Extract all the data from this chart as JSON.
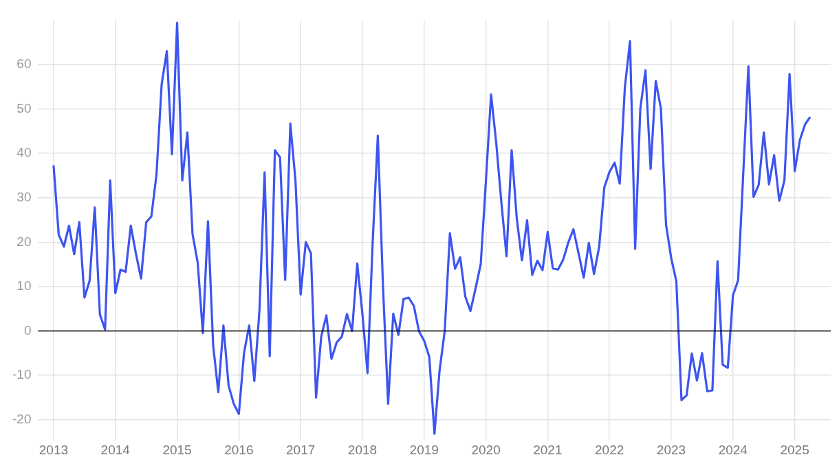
{
  "chart_data": {
    "type": "line",
    "x": [
      "2013-01",
      "2013-02",
      "2013-03",
      "2013-04",
      "2013-05",
      "2013-06",
      "2013-07",
      "2013-08",
      "2013-09",
      "2013-10",
      "2013-11",
      "2013-12",
      "2014-01",
      "2014-02",
      "2014-03",
      "2014-04",
      "2014-05",
      "2014-06",
      "2014-07",
      "2014-08",
      "2014-09",
      "2014-10",
      "2014-11",
      "2014-12",
      "2015-01",
      "2015-02",
      "2015-03",
      "2015-04",
      "2015-05",
      "2015-06",
      "2015-07",
      "2015-08",
      "2015-09",
      "2015-10",
      "2015-11",
      "2015-12",
      "2016-01",
      "2016-02",
      "2016-03",
      "2016-04",
      "2016-05",
      "2016-06",
      "2016-07",
      "2016-08",
      "2016-09",
      "2016-10",
      "2016-11",
      "2016-12",
      "2017-01",
      "2017-02",
      "2017-03",
      "2017-04",
      "2017-05",
      "2017-06",
      "2017-07",
      "2017-08",
      "2017-09",
      "2017-10",
      "2017-11",
      "2017-12",
      "2018-01",
      "2018-02",
      "2018-03",
      "2018-04",
      "2018-05",
      "2018-06",
      "2018-07",
      "2018-08",
      "2018-09",
      "2018-10",
      "2018-11",
      "2018-12",
      "2019-01",
      "2019-02",
      "2019-03",
      "2019-04",
      "2019-05",
      "2019-06",
      "2019-07",
      "2019-08",
      "2019-09",
      "2019-10",
      "2019-11",
      "2019-12",
      "2020-01",
      "2020-02",
      "2020-03",
      "2020-04",
      "2020-05",
      "2020-06",
      "2020-07",
      "2020-08",
      "2020-09",
      "2020-10",
      "2020-11",
      "2020-12",
      "2021-01",
      "2021-02",
      "2021-03",
      "2021-04",
      "2021-05",
      "2021-06",
      "2021-07",
      "2021-08",
      "2021-09",
      "2021-10",
      "2021-11",
      "2021-12",
      "2022-01",
      "2022-02",
      "2022-03",
      "2022-04",
      "2022-05",
      "2022-06",
      "2022-07",
      "2022-08",
      "2022-09",
      "2022-10",
      "2022-11",
      "2022-12",
      "2023-01",
      "2023-02",
      "2023-03",
      "2023-04",
      "2023-05",
      "2023-06",
      "2023-07",
      "2023-08",
      "2023-09",
      "2023-10",
      "2023-11",
      "2023-12",
      "2024-01",
      "2024-02",
      "2024-03",
      "2024-04",
      "2024-05",
      "2024-06",
      "2024-07",
      "2024-08",
      "2024-09",
      "2024-10",
      "2024-11",
      "2024-12",
      "2025-01",
      "2025-02",
      "2025-03",
      "2025-04"
    ],
    "series": [
      {
        "color": "#3d55f0",
        "values": [
          37.3,
          21.7,
          19,
          23.7,
          17.3,
          24.5,
          7.5,
          11.3,
          27.8,
          3.7,
          0.3,
          33.9,
          8.5,
          13.8,
          13.3,
          23.7,
          17.4,
          11.8,
          24.5,
          25.8,
          35.3,
          55.6,
          63,
          39.8,
          69.4,
          33.9,
          44.7,
          21.8,
          15.4,
          -0.5,
          24.7,
          -3.2,
          -13.8,
          1.2,
          -12.3,
          -16.4,
          -18.7,
          -5,
          1.2,
          -11.3,
          4.6,
          35.7,
          -5.7,
          40.7,
          39.1,
          11.5,
          46.7,
          33.8,
          8.2,
          20,
          17.5,
          -15,
          -1.3,
          3.5,
          -6.3,
          -2.6,
          -1.3,
          3.8,
          0,
          15.2,
          3.9,
          -9.5,
          20.1,
          44,
          10.1,
          -16.4,
          3.9,
          -0.9,
          7.2,
          7.5,
          5.6,
          -0.1,
          -2.2,
          -5.9,
          -23.2,
          -8.9,
          0,
          22,
          14,
          16.6,
          7.7,
          4.5,
          9.6,
          15.1,
          33.8,
          53.3,
          42.4,
          29,
          16.8,
          40.7,
          25.3,
          15.9,
          24.9,
          12.6,
          15.8,
          13.7,
          22.3,
          14.1,
          13.8,
          16,
          19.9,
          22.9,
          17.5,
          12,
          19.8,
          12.8,
          18.9,
          32.3,
          35.8,
          37.9,
          33.2,
          54.9,
          65.3,
          18.5,
          50.1,
          58.7,
          36.5,
          56.3,
          50.1,
          23.9,
          16.4,
          11.2,
          -15.6,
          -14.5,
          -5.1,
          -11.2,
          -5,
          -13.6,
          -13.4,
          15.7,
          -7.6,
          -8.3,
          8,
          11.4,
          35.5,
          59.6,
          30.2,
          32.9,
          44.7,
          33,
          39.6,
          29.3,
          33.9,
          57.9,
          36,
          43,
          46.5,
          48.2
        ]
      }
    ],
    "xlim": [
      "2012-10",
      "2025-08"
    ],
    "xticks": [
      "2013",
      "2014",
      "2015",
      "2016",
      "2017",
      "2018",
      "2019",
      "2020",
      "2021",
      "2022",
      "2023",
      "2024",
      "2025"
    ],
    "ylim": [
      -23.5,
      70
    ],
    "yticks": [
      -20,
      -10,
      0,
      10,
      20,
      30,
      40,
      50,
      60
    ],
    "ref_lines": [
      {
        "axis": "y",
        "value": 0,
        "color": "#000000"
      }
    ],
    "grid": true,
    "legend": false,
    "marker": "none",
    "line_style": "solid"
  }
}
